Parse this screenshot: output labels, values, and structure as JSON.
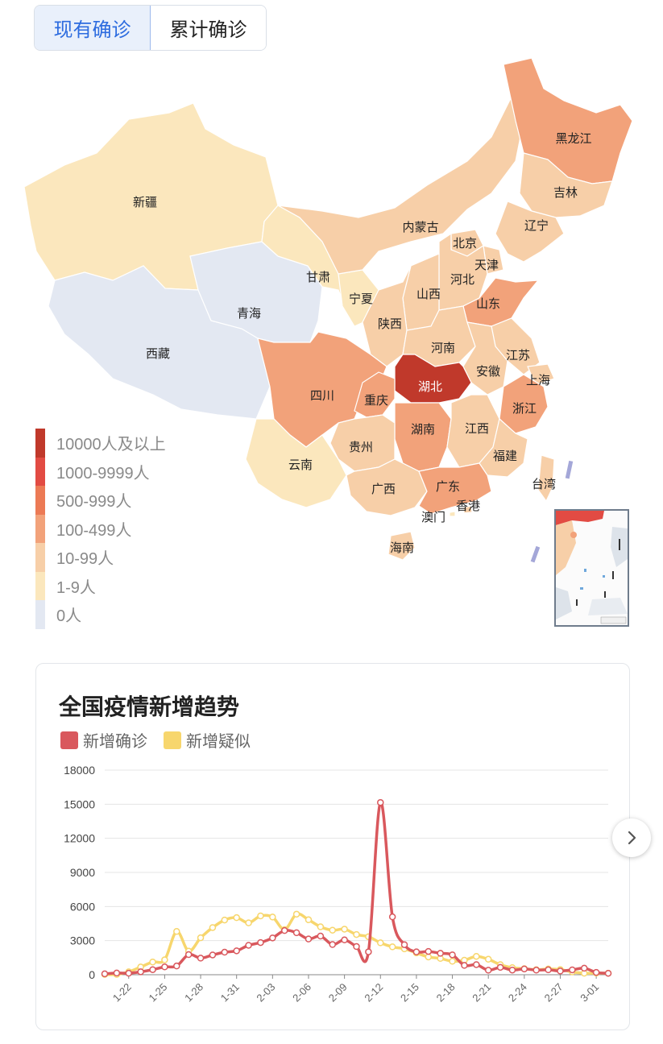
{
  "tabs": [
    {
      "label": "现有确诊",
      "active": true
    },
    {
      "label": "累计确诊",
      "active": false
    }
  ],
  "map": {
    "provinces": [
      {
        "name": "新疆",
        "level": 5,
        "light": false
      },
      {
        "name": "西藏",
        "level": 6,
        "light": false
      },
      {
        "name": "青海",
        "level": 6,
        "light": false
      },
      {
        "name": "甘肃",
        "level": 5,
        "light": false
      },
      {
        "name": "宁夏",
        "level": 5,
        "light": false
      },
      {
        "name": "内蒙古",
        "level": 4,
        "light": false
      },
      {
        "name": "黑龙江",
        "level": 3,
        "light": false
      },
      {
        "name": "吉林",
        "level": 4,
        "light": false
      },
      {
        "name": "辽宁",
        "level": 4,
        "light": false
      },
      {
        "name": "北京",
        "level": 4,
        "light": false
      },
      {
        "name": "天津",
        "level": 4,
        "light": false
      },
      {
        "name": "河北",
        "level": 4,
        "light": false
      },
      {
        "name": "山西",
        "level": 4,
        "light": false
      },
      {
        "name": "山东",
        "level": 3,
        "light": false
      },
      {
        "name": "陕西",
        "level": 4,
        "light": false
      },
      {
        "name": "河南",
        "level": 4,
        "light": false
      },
      {
        "name": "江苏",
        "level": 4,
        "light": false
      },
      {
        "name": "安徽",
        "level": 4,
        "light": false
      },
      {
        "name": "上海",
        "level": 4,
        "light": false
      },
      {
        "name": "湖北",
        "level": 0,
        "light": true
      },
      {
        "name": "四川",
        "level": 3,
        "light": false
      },
      {
        "name": "重庆",
        "level": 3,
        "light": false
      },
      {
        "name": "浙江",
        "level": 3,
        "light": false
      },
      {
        "name": "湖南",
        "level": 3,
        "light": false
      },
      {
        "name": "江西",
        "level": 4,
        "light": false
      },
      {
        "name": "贵州",
        "level": 4,
        "light": false
      },
      {
        "name": "云南",
        "level": 5,
        "light": false
      },
      {
        "name": "福建",
        "level": 4,
        "light": false
      },
      {
        "name": "广西",
        "level": 4,
        "light": false
      },
      {
        "name": "广东",
        "level": 3,
        "light": false
      },
      {
        "name": "香港",
        "level": 4,
        "light": false
      },
      {
        "name": "澳门",
        "level": 5,
        "light": false
      },
      {
        "name": "台湾",
        "level": 4,
        "light": false
      },
      {
        "name": "海南",
        "level": 4,
        "light": false
      }
    ],
    "legend": [
      {
        "label": "10000人及以上",
        "color": "#c0392b"
      },
      {
        "label": "1000-9999人",
        "color": "#e24b43"
      },
      {
        "label": "500-999人",
        "color": "#ec7a55"
      },
      {
        "label": "100-499人",
        "color": "#f2a27a"
      },
      {
        "label": "10-99人",
        "color": "#f7cfa8"
      },
      {
        "label": "1-9人",
        "color": "#fbe7bd"
      },
      {
        "label": "0人",
        "color": "#e3e8f2"
      }
    ]
  },
  "chart_card": {
    "title": "全国疫情新增趋势",
    "series_labels": [
      "新增确诊",
      "新增疑似"
    ]
  },
  "chart_data": {
    "type": "line",
    "title": "全国疫情新增趋势",
    "x": [
      "1-20",
      "1-21",
      "1-22",
      "1-23",
      "1-24",
      "1-25",
      "1-26",
      "1-27",
      "1-28",
      "1-29",
      "1-30",
      "1-31",
      "2-01",
      "2-02",
      "2-03",
      "2-04",
      "2-05",
      "2-06",
      "2-07",
      "2-08",
      "2-09",
      "2-10",
      "2-11",
      "2-12",
      "2-13",
      "2-14",
      "2-15",
      "2-16",
      "2-17",
      "2-18",
      "2-19",
      "2-20",
      "2-21",
      "2-22",
      "2-23",
      "2-24",
      "2-25",
      "2-26",
      "2-27",
      "2-28",
      "2-29",
      "3-01",
      "3-02"
    ],
    "x_tick_labels": [
      "1-22",
      "1-25",
      "1-28",
      "1-31",
      "2-03",
      "2-06",
      "2-09",
      "2-12",
      "2-15",
      "2-18",
      "2-21",
      "2-24",
      "2-27",
      "3-01"
    ],
    "series": [
      {
        "name": "新增确诊",
        "color": "#d9585d",
        "values": [
          77,
          149,
          131,
          259,
          444,
          688,
          769,
          1771,
          1459,
          1737,
          1982,
          2102,
          2590,
          2829,
          3235,
          3887,
          3694,
          3143,
          3399,
          2656,
          3062,
          2478,
          2015,
          15152,
          5090,
          2641,
          2009,
          2048,
          1886,
          1749,
          820,
          889,
          397,
          648,
          409,
          508,
          406,
          433,
          327,
          427,
          573,
          202,
          125
        ]
      },
      {
        "name": "新增疑似",
        "color": "#f7d66d",
        "values": [
          27,
          26,
          257,
          680,
          1118,
          1309,
          3806,
          2077,
          3248,
          4148,
          4812,
          5019,
          4562,
          5173,
          5072,
          3971,
          5328,
          4833,
          4214,
          3916,
          4008,
          3536,
          3342,
          2807,
          2450,
          2277,
          1918,
          1563,
          1432,
          1185,
          1277,
          1614,
          1361,
          882,
          620,
          530,
          439,
          508,
          452,
          248,
          132,
          141,
          129
        ]
      }
    ],
    "ylim": [
      0,
      18000
    ],
    "yticks": [
      0,
      3000,
      6000,
      9000,
      12000,
      15000,
      18000
    ],
    "grid": true,
    "legend": "top-left"
  }
}
